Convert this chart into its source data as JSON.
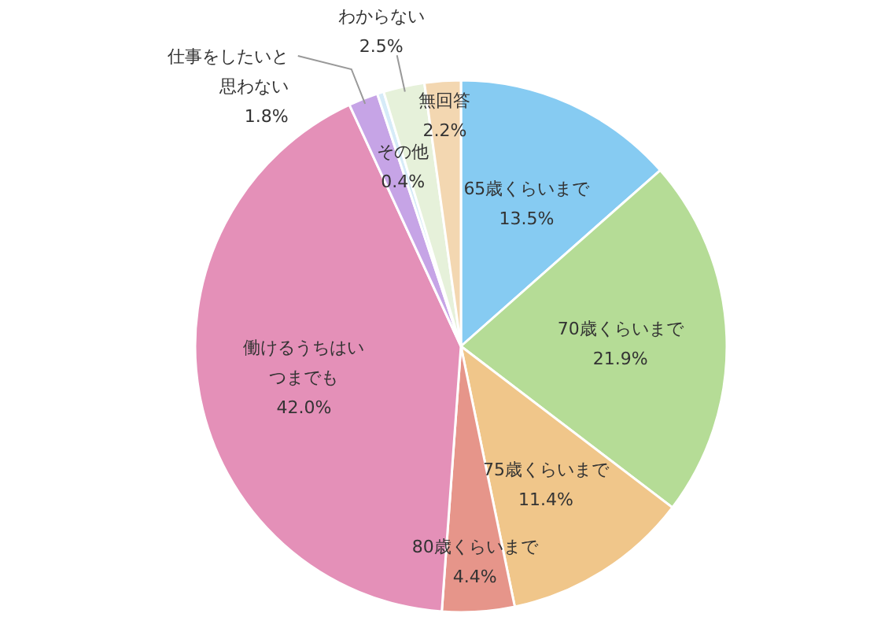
{
  "chart_data": {
    "type": "pie",
    "categories": [
      "65歳くらいまで",
      "70歳くらいまで",
      "75歳くらいまで",
      "80歳くらいまで",
      "働けるうちはいつまでも",
      "仕事をしたいと思わない",
      "その他",
      "わからない",
      "無回答"
    ],
    "values": [
      13.5,
      21.9,
      11.4,
      4.4,
      42.0,
      1.8,
      0.4,
      2.5,
      2.2
    ],
    "colors": [
      "#86cbf2",
      "#b5dc96",
      "#f0c68a",
      "#e6958a",
      "#e490b8",
      "#c6a4e6",
      "#d6ebf8",
      "#e6f1da",
      "#f3d7b1"
    ],
    "value_labels": [
      "13.5%",
      "21.9%",
      "11.4%",
      "4.4%",
      "42.0%",
      "1.8%",
      "0.4%",
      "2.5%",
      "2.2%"
    ]
  }
}
